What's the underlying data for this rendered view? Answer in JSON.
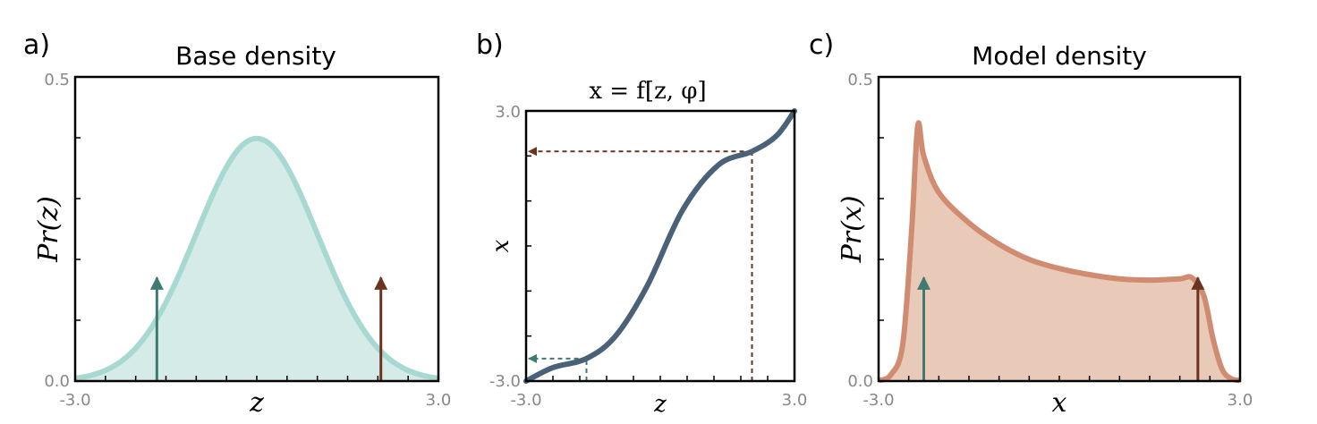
{
  "chart_data": [
    {
      "panel": "a)",
      "type": "area",
      "title": "Base density",
      "xlabel": "z",
      "ylabel": "Pr(z)",
      "xlim": [
        -3.0,
        3.0
      ],
      "ylim": [
        0.0,
        0.5
      ],
      "xtick_labels": [
        "-3.0",
        "3.0"
      ],
      "ytick_labels": [
        "0.0",
        "0.5"
      ],
      "curve": "standard normal density",
      "peak": {
        "x": 0.0,
        "y": 0.399
      },
      "arrows": [
        {
          "x": -1.65,
          "y": 0.17,
          "color": "#3f7a73"
        },
        {
          "x": 2.05,
          "y": 0.17,
          "color": "#6b3420"
        }
      ],
      "colors": {
        "line": "#a8d8d2",
        "fill": "#d5ebe7"
      }
    },
    {
      "panel": "b)",
      "type": "line",
      "title": "x = f[z, φ]",
      "xlabel": "z",
      "ylabel": "x",
      "xlim": [
        -3.0,
        3.0
      ],
      "ylim": [
        -3.0,
        3.0
      ],
      "xtick_labels": [
        "-3.0",
        "3.0"
      ],
      "ytick_labels": [
        "-3.0",
        "3.0"
      ],
      "points": [
        {
          "z": -3.0,
          "x": -3.0
        },
        {
          "z": -2.4,
          "x": -2.7
        },
        {
          "z": -1.65,
          "x": -2.5
        },
        {
          "z": -1.0,
          "x": -2.0
        },
        {
          "z": -0.3,
          "x": -0.9
        },
        {
          "z": 0.5,
          "x": 0.8
        },
        {
          "z": 1.3,
          "x": 1.8
        },
        {
          "z": 2.05,
          "x": 2.1
        },
        {
          "z": 2.6,
          "x": 2.45
        },
        {
          "z": 3.0,
          "x": 3.0
        }
      ],
      "guides": [
        {
          "z": -1.65,
          "x": -2.5,
          "color": "#3f7a73"
        },
        {
          "z": 2.05,
          "x": 2.1,
          "color": "#6b3420"
        }
      ],
      "colors": {
        "line": "#4a6278"
      }
    },
    {
      "panel": "c)",
      "type": "area",
      "title": "Model density",
      "xlabel": "x",
      "ylabel": "Pr(x)",
      "xlim": [
        -3.0,
        3.0
      ],
      "ylim": [
        0.0,
        0.5
      ],
      "xtick_labels": [
        "-3.0",
        "3.0"
      ],
      "ytick_labels": [
        "0.0",
        "0.5"
      ],
      "points": [
        {
          "x": -3.0,
          "y": 0.001
        },
        {
          "x": -2.8,
          "y": 0.01
        },
        {
          "x": -2.6,
          "y": 0.06
        },
        {
          "x": -2.45,
          "y": 0.25
        },
        {
          "x": -2.35,
          "y": 0.42
        },
        {
          "x": -2.25,
          "y": 0.37
        },
        {
          "x": -2.0,
          "y": 0.31
        },
        {
          "x": -1.5,
          "y": 0.26
        },
        {
          "x": -1.0,
          "y": 0.225
        },
        {
          "x": -0.5,
          "y": 0.2
        },
        {
          "x": 0.0,
          "y": 0.185
        },
        {
          "x": 0.5,
          "y": 0.175
        },
        {
          "x": 1.0,
          "y": 0.168
        },
        {
          "x": 1.5,
          "y": 0.166
        },
        {
          "x": 2.0,
          "y": 0.168
        },
        {
          "x": 2.2,
          "y": 0.17
        },
        {
          "x": 2.4,
          "y": 0.14
        },
        {
          "x": 2.55,
          "y": 0.07
        },
        {
          "x": 2.7,
          "y": 0.02
        },
        {
          "x": 2.85,
          "y": 0.004
        },
        {
          "x": 3.0,
          "y": 0.001
        }
      ],
      "arrows": [
        {
          "x": -2.25,
          "y": 0.17,
          "color": "#3f7a73"
        },
        {
          "x": 2.3,
          "y": 0.17,
          "color": "#6b3420"
        }
      ],
      "colors": {
        "line": "#d08c70",
        "fill": "#e9c9b8"
      }
    }
  ]
}
